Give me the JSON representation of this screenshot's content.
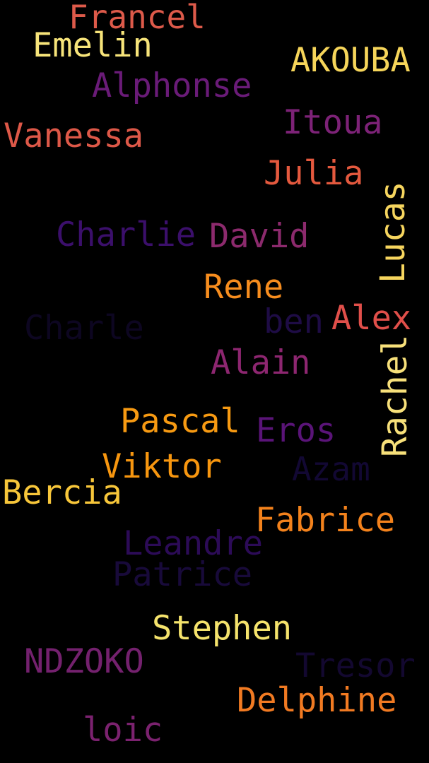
{
  "background": "#000000",
  "words": [
    {
      "id": "francel",
      "text": "Francel",
      "color": "#dd5a4a"
    },
    {
      "id": "emelin",
      "text": "Emelin",
      "color": "#f7e47a"
    },
    {
      "id": "akouba",
      "text": "AKOUBA",
      "color": "#f6d55a"
    },
    {
      "id": "alphonse",
      "text": "Alphonse",
      "color": "#6a1b78"
    },
    {
      "id": "itoua",
      "text": "Itoua",
      "color": "#7d2277"
    },
    {
      "id": "vanessa",
      "text": "Vanessa",
      "color": "#dd5848"
    },
    {
      "id": "julia",
      "text": "Julia",
      "color": "#e4593e"
    },
    {
      "id": "lucas",
      "text": "Lucas",
      "color": "#f6d55e"
    },
    {
      "id": "charlie",
      "text": "Charlie",
      "color": "#3b0f6b"
    },
    {
      "id": "david",
      "text": "David",
      "color": "#8c2a6d"
    },
    {
      "id": "rene",
      "text": "Rene",
      "color": "#f78d1e"
    },
    {
      "id": "charle",
      "text": "Charle",
      "color": "#0d0621"
    },
    {
      "id": "ben",
      "text": "ben",
      "color": "#1e0c45"
    },
    {
      "id": "alex",
      "text": "Alex",
      "color": "#e04f4a"
    },
    {
      "id": "alain",
      "text": "Alain",
      "color": "#8d2670"
    },
    {
      "id": "rachel",
      "text": "Rachel",
      "color": "#f7e07a"
    },
    {
      "id": "pascal",
      "text": "Pascal",
      "color": "#f79a12"
    },
    {
      "id": "eros",
      "text": "Eros",
      "color": "#5a1478"
    },
    {
      "id": "viktor",
      "text": "Viktor",
      "color": "#f7960f"
    },
    {
      "id": "azam",
      "text": "Azam",
      "color": "#120833"
    },
    {
      "id": "bercia",
      "text": "Bercia",
      "color": "#f7c63a"
    },
    {
      "id": "fabrice",
      "text": "Fabrice",
      "color": "#f3821c"
    },
    {
      "id": "leandre",
      "text": "Leandre",
      "color": "#2c0b57"
    },
    {
      "id": "patrice",
      "text": "Patrice",
      "color": "#180a3a"
    },
    {
      "id": "stephen",
      "text": "Stephen",
      "color": "#f5e36c"
    },
    {
      "id": "ndzoko",
      "text": "NDZOKO",
      "color": "#74216e"
    },
    {
      "id": "tresor",
      "text": "Tresor",
      "color": "#130830"
    },
    {
      "id": "delphine",
      "text": "Delphine",
      "color": "#f17a22"
    },
    {
      "id": "loic",
      "text": "loic",
      "color": "#7b226f"
    }
  ]
}
